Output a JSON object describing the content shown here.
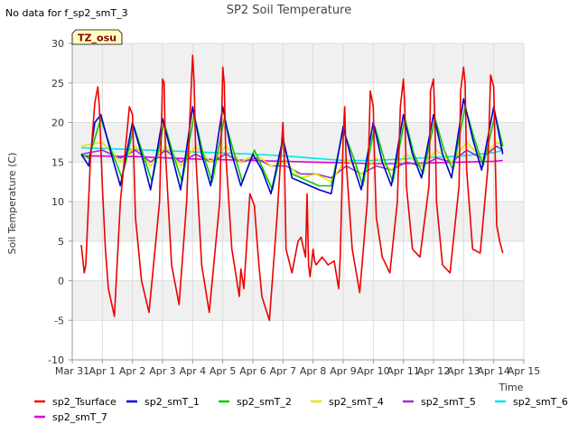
{
  "status_message": "No data for f_sp2_smT_3",
  "tz_label": "TZ_osu",
  "chart_data": {
    "type": "line",
    "title": "SP2 Soil Temperature",
    "xlabel": "Time",
    "ylabel": "Soil Temperature (C)",
    "xlim": [
      0,
      15
    ],
    "ylim": [
      -10,
      30
    ],
    "xticks": [
      0,
      1,
      2,
      3,
      4,
      5,
      6,
      7,
      8,
      9,
      10,
      11,
      12,
      13,
      14,
      15
    ],
    "xtick_labels": [
      "Mar 31",
      "Apr 1",
      "Apr 2",
      "Apr 3",
      "Apr 4",
      "Apr 5",
      "Apr 6",
      "Apr 7",
      "Apr 8",
      "Apr 9",
      "Apr 10",
      "Apr 11",
      "Apr 12",
      "Apr 13",
      "Apr 14",
      "Apr 15"
    ],
    "yticks": [
      -10,
      -5,
      0,
      5,
      10,
      15,
      20,
      25,
      30
    ],
    "ytick_labels": [
      "-10",
      "-5",
      "0",
      "5",
      "10",
      "15",
      "20",
      "25",
      "30"
    ],
    "grid": true,
    "legend_position": "bottom",
    "series": [
      {
        "name": "sp2_Tsurface",
        "color": "#ee0000",
        "x": [
          0.3,
          0.4,
          0.45,
          0.6,
          0.75,
          0.85,
          0.9,
          1.0,
          1.05,
          1.1,
          1.2,
          1.4,
          1.6,
          1.9,
          2.0,
          2.05,
          2.1,
          2.3,
          2.55,
          2.9,
          3.0,
          3.05,
          3.1,
          3.3,
          3.55,
          3.8,
          3.9,
          4.0,
          4.05,
          4.1,
          4.3,
          4.55,
          4.9,
          5.0,
          5.05,
          5.1,
          5.3,
          5.55,
          5.6,
          5.7,
          5.9,
          6.0,
          6.05,
          6.1,
          6.2,
          6.3,
          6.55,
          6.8,
          6.9,
          7.0,
          7.05,
          7.1,
          7.3,
          7.5,
          7.6,
          7.75,
          7.8,
          7.85,
          7.9,
          8.0,
          8.05,
          8.1,
          8.3,
          8.5,
          8.7,
          8.85,
          8.9,
          9.0,
          9.05,
          9.1,
          9.3,
          9.55,
          9.8,
          9.9,
          10.0,
          10.05,
          10.1,
          10.3,
          10.55,
          10.8,
          10.9,
          11.0,
          11.05,
          11.1,
          11.3,
          11.55,
          11.85,
          11.9,
          12.0,
          12.05,
          12.1,
          12.3,
          12.55,
          12.85,
          12.9,
          13.0,
          13.05,
          13.1,
          13.3,
          13.55,
          13.8,
          13.9,
          14.0,
          14.05,
          14.1,
          14.2,
          14.3
        ],
        "values": [
          4.5,
          1.0,
          2.0,
          15.0,
          22.5,
          24.5,
          22.0,
          12.0,
          8.0,
          4.0,
          -1.0,
          -4.5,
          10.0,
          22.0,
          21.0,
          15.0,
          8.0,
          0.0,
          -4.0,
          10.0,
          25.5,
          25.0,
          16.0,
          2.0,
          -3.0,
          10.0,
          20.0,
          28.5,
          25.0,
          16.0,
          2.0,
          -4.0,
          10.0,
          27.0,
          25.0,
          16.0,
          4.0,
          -2.0,
          1.5,
          -1.0,
          11.0,
          10.0,
          9.5,
          7.0,
          2.0,
          -2.0,
          -5.0,
          8.0,
          14.0,
          20.0,
          15.0,
          4.0,
          1.0,
          5.0,
          5.5,
          3.0,
          11.0,
          2.0,
          0.5,
          4.0,
          2.5,
          2.0,
          3.0,
          2.0,
          2.5,
          -1.0,
          3.0,
          18.0,
          22.0,
          15.0,
          4.0,
          -1.5,
          10.0,
          24.0,
          22.0,
          14.0,
          8.0,
          3.0,
          1.0,
          10.0,
          22.0,
          25.5,
          22.0,
          12.0,
          4.0,
          3.0,
          12.0,
          24.0,
          25.5,
          20.0,
          10.0,
          2.0,
          1.0,
          12.0,
          24.0,
          27.0,
          25.0,
          14.0,
          4.0,
          3.5,
          14.0,
          26.0,
          24.5,
          16.0,
          7.0,
          5.0,
          3.5
        ]
      },
      {
        "name": "sp2_smT_1",
        "color": "#0000cc",
        "x": [
          0.3,
          0.55,
          0.75,
          0.95,
          1.3,
          1.6,
          2.0,
          2.3,
          2.6,
          3.0,
          3.3,
          3.6,
          4.0,
          4.3,
          4.6,
          5.0,
          5.3,
          5.6,
          6.0,
          6.3,
          6.6,
          7.0,
          7.3,
          7.6,
          7.9,
          8.2,
          8.6,
          9.0,
          9.3,
          9.6,
          10.0,
          10.3,
          10.6,
          11.0,
          11.3,
          11.6,
          12.0,
          12.3,
          12.6,
          13.0,
          13.3,
          13.6,
          14.0,
          14.3
        ],
        "values": [
          16.0,
          14.5,
          20.0,
          21.0,
          16.0,
          12.0,
          20.0,
          16.0,
          11.5,
          20.5,
          16.0,
          11.5,
          22.0,
          16.0,
          12.0,
          22.0,
          16.0,
          12.0,
          16.0,
          14.0,
          11.0,
          18.0,
          13.0,
          12.5,
          12.0,
          11.5,
          11.0,
          19.5,
          15.0,
          11.5,
          20.0,
          15.0,
          12.0,
          21.0,
          16.0,
          13.0,
          21.0,
          16.0,
          13.0,
          23.0,
          18.0,
          14.0,
          22.0,
          16.0
        ]
      },
      {
        "name": "sp2_smT_2",
        "color": "#00cc00",
        "x": [
          0.3,
          0.55,
          0.95,
          1.3,
          1.65,
          2.05,
          2.35,
          2.65,
          3.05,
          3.35,
          3.65,
          4.05,
          4.35,
          4.65,
          5.05,
          5.35,
          5.65,
          6.05,
          6.35,
          6.65,
          7.0,
          7.3,
          7.6,
          7.9,
          8.2,
          8.6,
          9.0,
          9.35,
          9.65,
          10.05,
          10.35,
          10.65,
          11.05,
          11.35,
          11.65,
          12.05,
          12.35,
          12.65,
          13.05,
          13.35,
          13.65,
          14.05,
          14.3
        ],
        "values": [
          16.0,
          15.5,
          20.5,
          16.5,
          13.0,
          19.5,
          16.0,
          12.5,
          20.0,
          16.0,
          12.5,
          21.0,
          16.0,
          12.5,
          20.5,
          16.5,
          12.5,
          16.5,
          14.0,
          11.5,
          17.5,
          13.5,
          13.0,
          12.5,
          12.0,
          12.0,
          19.0,
          15.5,
          12.0,
          19.5,
          15.5,
          12.5,
          20.5,
          16.0,
          13.5,
          20.5,
          16.5,
          14.0,
          22.0,
          18.0,
          14.5,
          21.0,
          17.0
        ]
      },
      {
        "name": "sp2_smT_4",
        "color": "#e6e600",
        "x": [
          0.3,
          1.0,
          1.6,
          2.1,
          2.6,
          3.1,
          3.6,
          4.1,
          4.6,
          5.1,
          5.6,
          6.1,
          6.6,
          7.1,
          7.6,
          8.1,
          8.6,
          9.1,
          9.6,
          10.1,
          10.6,
          11.1,
          11.6,
          12.1,
          12.6,
          13.1,
          13.6,
          14.1,
          14.3
        ],
        "values": [
          17.0,
          17.5,
          15.0,
          17.0,
          14.5,
          17.0,
          14.5,
          17.0,
          15.0,
          17.0,
          15.0,
          16.0,
          14.5,
          15.0,
          13.0,
          13.5,
          12.5,
          15.5,
          13.5,
          15.5,
          14.0,
          16.0,
          14.5,
          16.5,
          15.0,
          17.5,
          15.5,
          17.5,
          17.0
        ]
      },
      {
        "name": "sp2_smT_5",
        "color": "#9932cc",
        "x": [
          0.3,
          1.0,
          1.6,
          2.1,
          2.6,
          3.1,
          3.6,
          4.1,
          4.6,
          5.1,
          5.6,
          6.1,
          6.6,
          7.1,
          7.6,
          8.1,
          8.6,
          9.1,
          9.6,
          10.1,
          10.6,
          11.1,
          11.6,
          12.1,
          12.6,
          13.1,
          13.6,
          14.1,
          14.3
        ],
        "values": [
          16.0,
          16.5,
          15.5,
          16.5,
          15.0,
          16.5,
          15.0,
          16.0,
          15.0,
          16.0,
          15.0,
          15.5,
          14.5,
          14.5,
          13.5,
          13.5,
          13.0,
          14.5,
          13.5,
          14.5,
          14.0,
          15.0,
          14.5,
          15.5,
          15.0,
          16.5,
          15.5,
          17.0,
          16.5
        ]
      },
      {
        "name": "sp2_smT_6",
        "color": "#00e5ee",
        "x": [
          0.3,
          2.0,
          4.0,
          6.0,
          7.0,
          8.0,
          9.0,
          10.0,
          11.0,
          12.0,
          13.0,
          14.0,
          14.3
        ],
        "values": [
          16.8,
          16.6,
          16.3,
          16.0,
          15.8,
          15.5,
          15.2,
          15.2,
          15.4,
          15.6,
          15.8,
          16.2,
          16.5
        ]
      },
      {
        "name": "sp2_smT_7",
        "color": "#dd00dd",
        "x": [
          0.3,
          2.0,
          4.0,
          6.0,
          8.0,
          9.0,
          10.0,
          11.0,
          12.0,
          13.0,
          14.0,
          14.3
        ],
        "values": [
          15.8,
          15.7,
          15.4,
          15.2,
          15.0,
          14.9,
          14.8,
          14.8,
          14.9,
          15.0,
          15.1,
          15.2
        ]
      }
    ]
  }
}
